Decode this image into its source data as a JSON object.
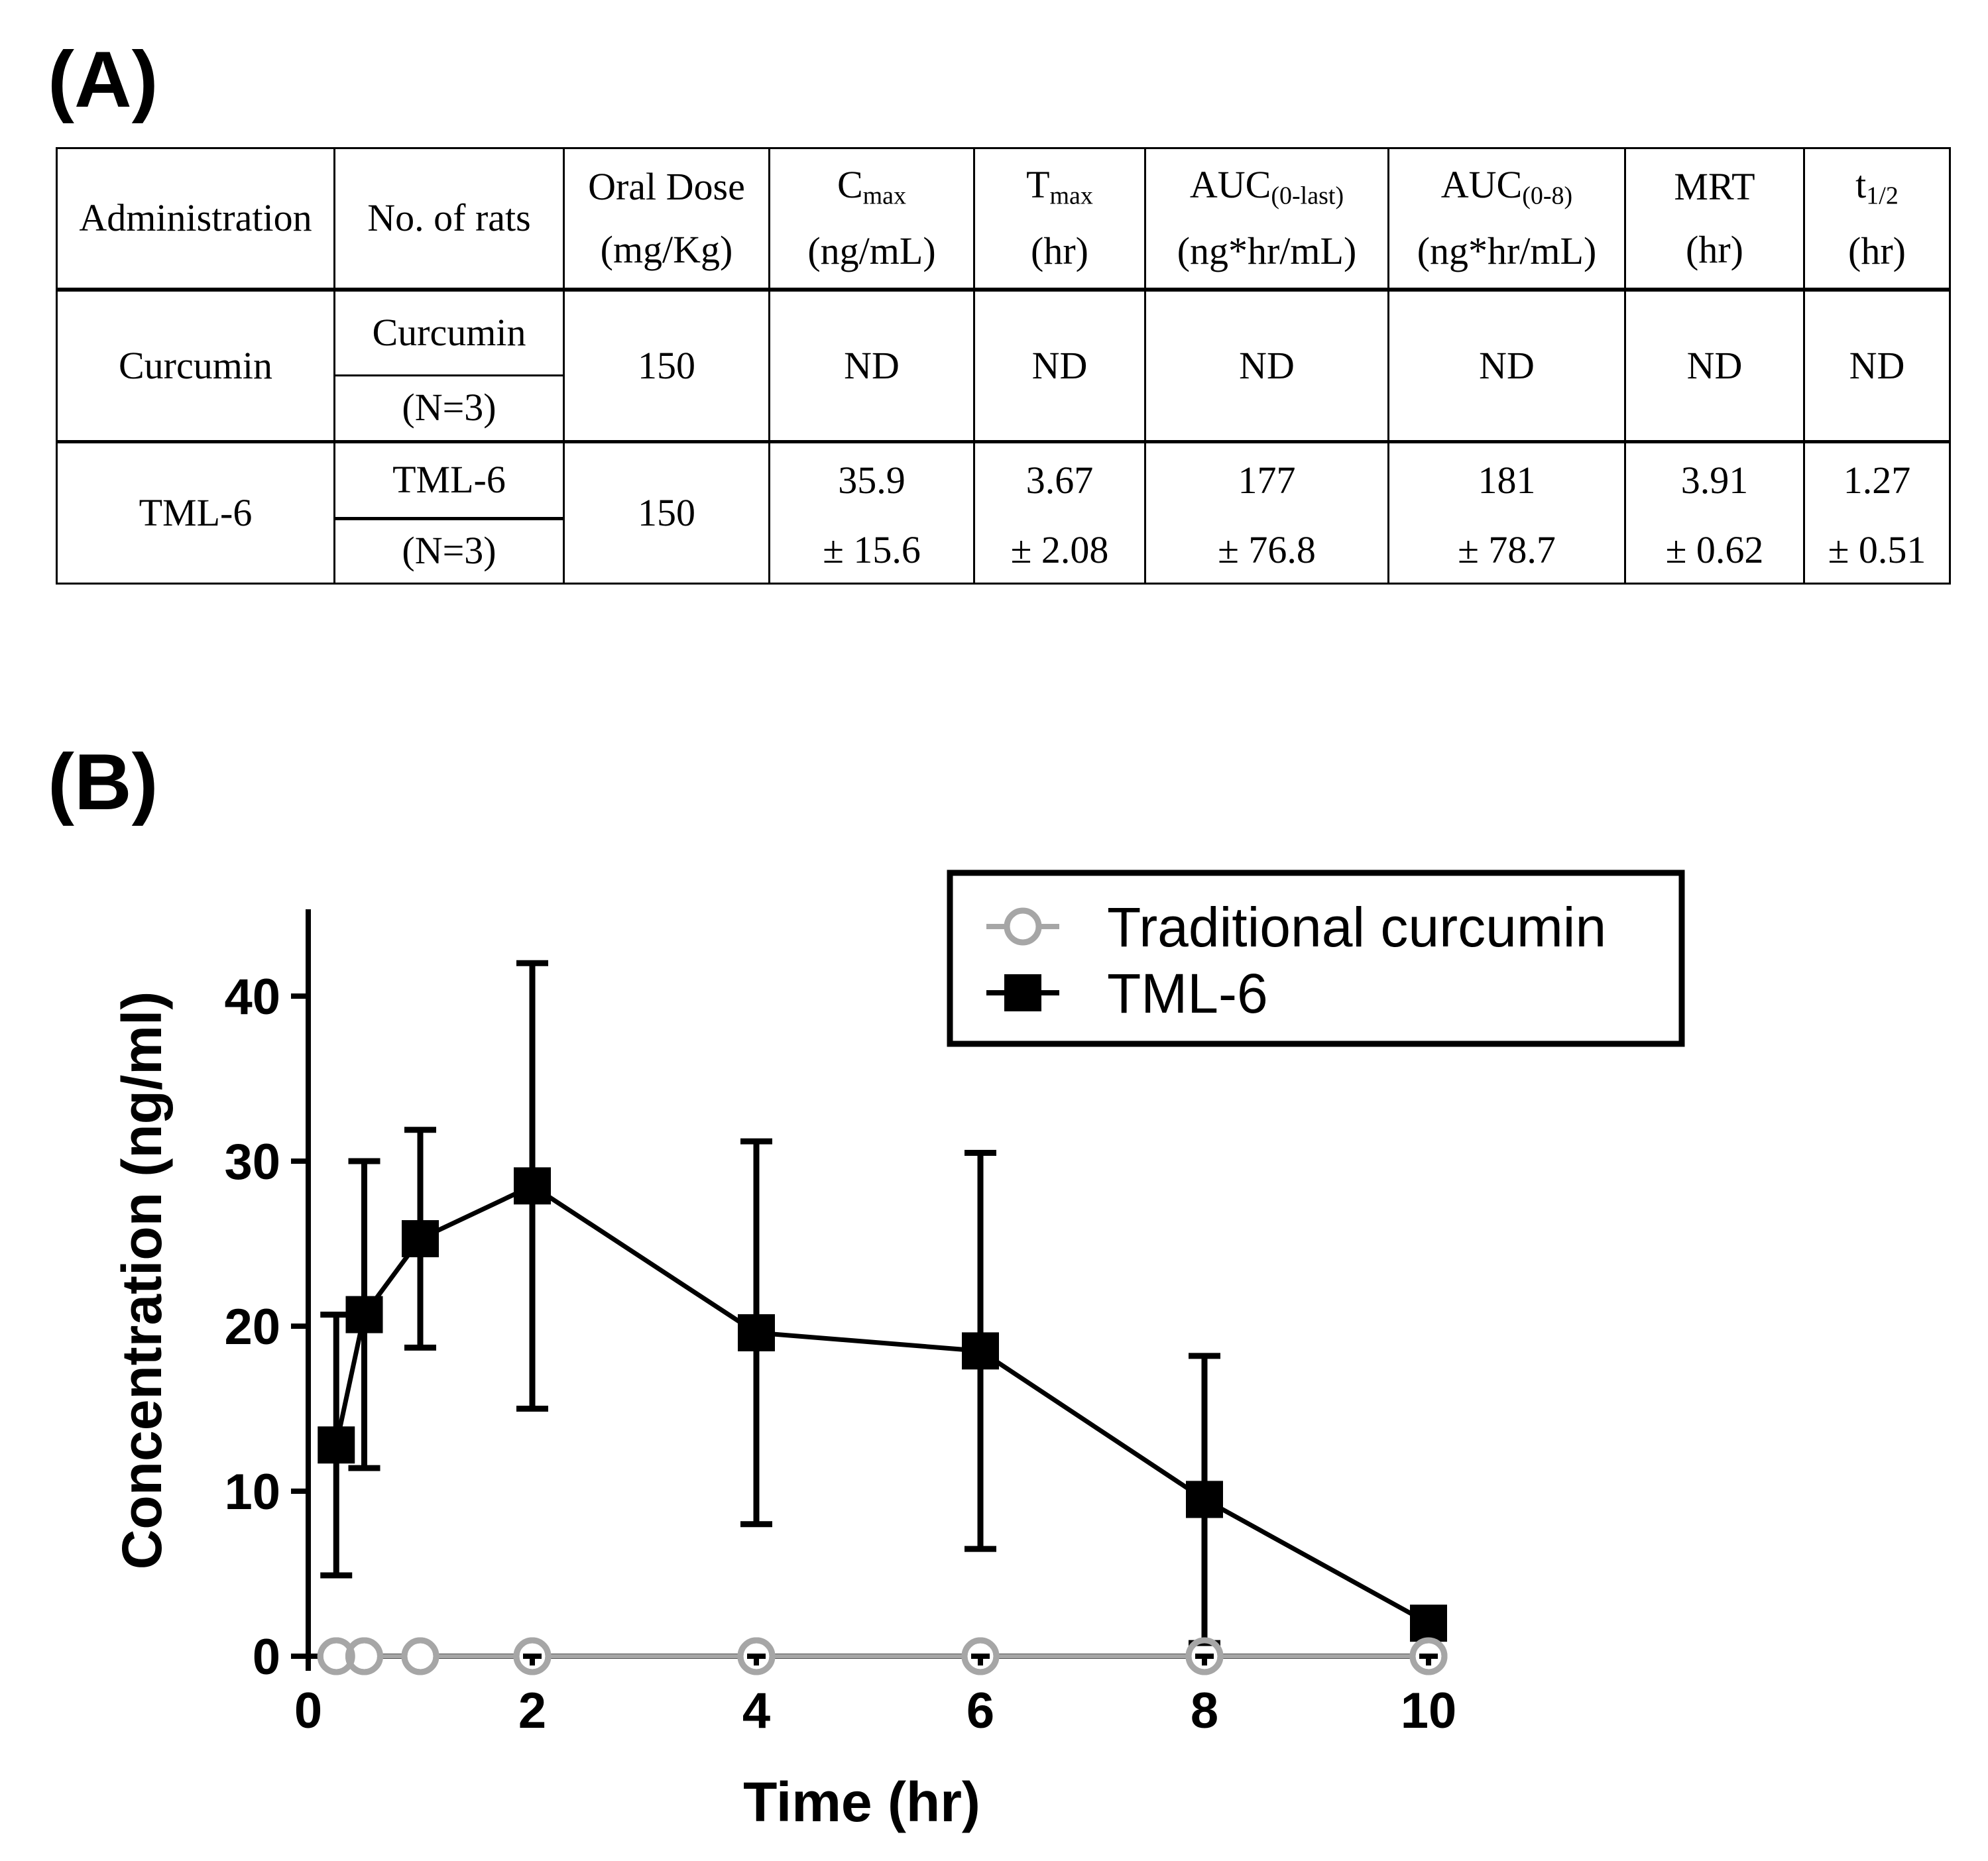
{
  "panels": {
    "a": "(A)",
    "b": "(B)"
  },
  "table": {
    "headers": [
      {
        "line1": "Administration"
      },
      {
        "line1": "No. of rats"
      },
      {
        "line1": "Oral Dose",
        "line2": "(mg/Kg)"
      },
      {
        "line1": "C",
        "sub": "max",
        "line2": "(ng/mL)"
      },
      {
        "line1": "T",
        "sub": "max",
        "line2": "(hr)"
      },
      {
        "line1": "AUC",
        "sub": "(0-last)",
        "line2": "(ng*hr/mL)"
      },
      {
        "line1": "AUC",
        "sub": "(0-8)",
        "line2": "(ng*hr/mL)"
      },
      {
        "line1": "MRT",
        "line2": "(hr)"
      },
      {
        "line1": "t",
        "sub": "1/2",
        "line2": "(hr)"
      }
    ],
    "rows": [
      {
        "administration": "Curcumin",
        "rats_name": "Curcumin",
        "rats_n": "(N=3)",
        "dose": "150",
        "cmax": {
          "v": "ND",
          "sd": ""
        },
        "tmax": {
          "v": "ND",
          "sd": ""
        },
        "auc_last": {
          "v": "ND",
          "sd": ""
        },
        "auc_8": {
          "v": "ND",
          "sd": ""
        },
        "mrt": {
          "v": "ND",
          "sd": ""
        },
        "thalf": {
          "v": "ND",
          "sd": ""
        }
      },
      {
        "administration": "TML-6",
        "rats_name": "TML-6",
        "rats_n": "(N=3)",
        "dose": "150",
        "cmax": {
          "v": "35.9",
          "sd": "± 15.6"
        },
        "tmax": {
          "v": "3.67",
          "sd": "± 2.08"
        },
        "auc_last": {
          "v": "177",
          "sd": "± 76.8"
        },
        "auc_8": {
          "v": "181",
          "sd": "± 78.7"
        },
        "mrt": {
          "v": "3.91",
          "sd": "± 0.62"
        },
        "thalf": {
          "v": "1.27",
          "sd": "± 0.51"
        }
      }
    ]
  },
  "chart_data": {
    "type": "line",
    "title": "",
    "xlabel": "Time (hr)",
    "ylabel": "Concentration (ng/ml)",
    "xlim": [
      0,
      10
    ],
    "ylim": [
      0,
      45
    ],
    "x_ticks": [
      "0",
      "2",
      "4",
      "6",
      "8",
      "10"
    ],
    "y_ticks": [
      "0",
      "10",
      "20",
      "30",
      "40"
    ],
    "grid": false,
    "legend_position": "top-right",
    "series": [
      {
        "name": "Traditional curcumin",
        "marker": "open-circle",
        "color": "#a6a6a6",
        "x": [
          0.25,
          0.5,
          1,
          2,
          4,
          6,
          8,
          10
        ],
        "y": [
          0,
          0,
          0,
          0,
          0,
          0,
          0,
          0
        ],
        "err": [
          0,
          0,
          0,
          0,
          0,
          0,
          0,
          0
        ]
      },
      {
        "name": "TML-6",
        "marker": "filled-square",
        "color": "#000000",
        "x": [
          0.25,
          0.5,
          1,
          2,
          4,
          6,
          8,
          10
        ],
        "y": [
          12.8,
          20.7,
          25.3,
          28.5,
          19.6,
          18.5,
          9.5,
          2.0
        ],
        "err": [
          7.9,
          9.3,
          6.6,
          13.5,
          11.6,
          12.0,
          8.7,
          0.6
        ]
      }
    ]
  }
}
